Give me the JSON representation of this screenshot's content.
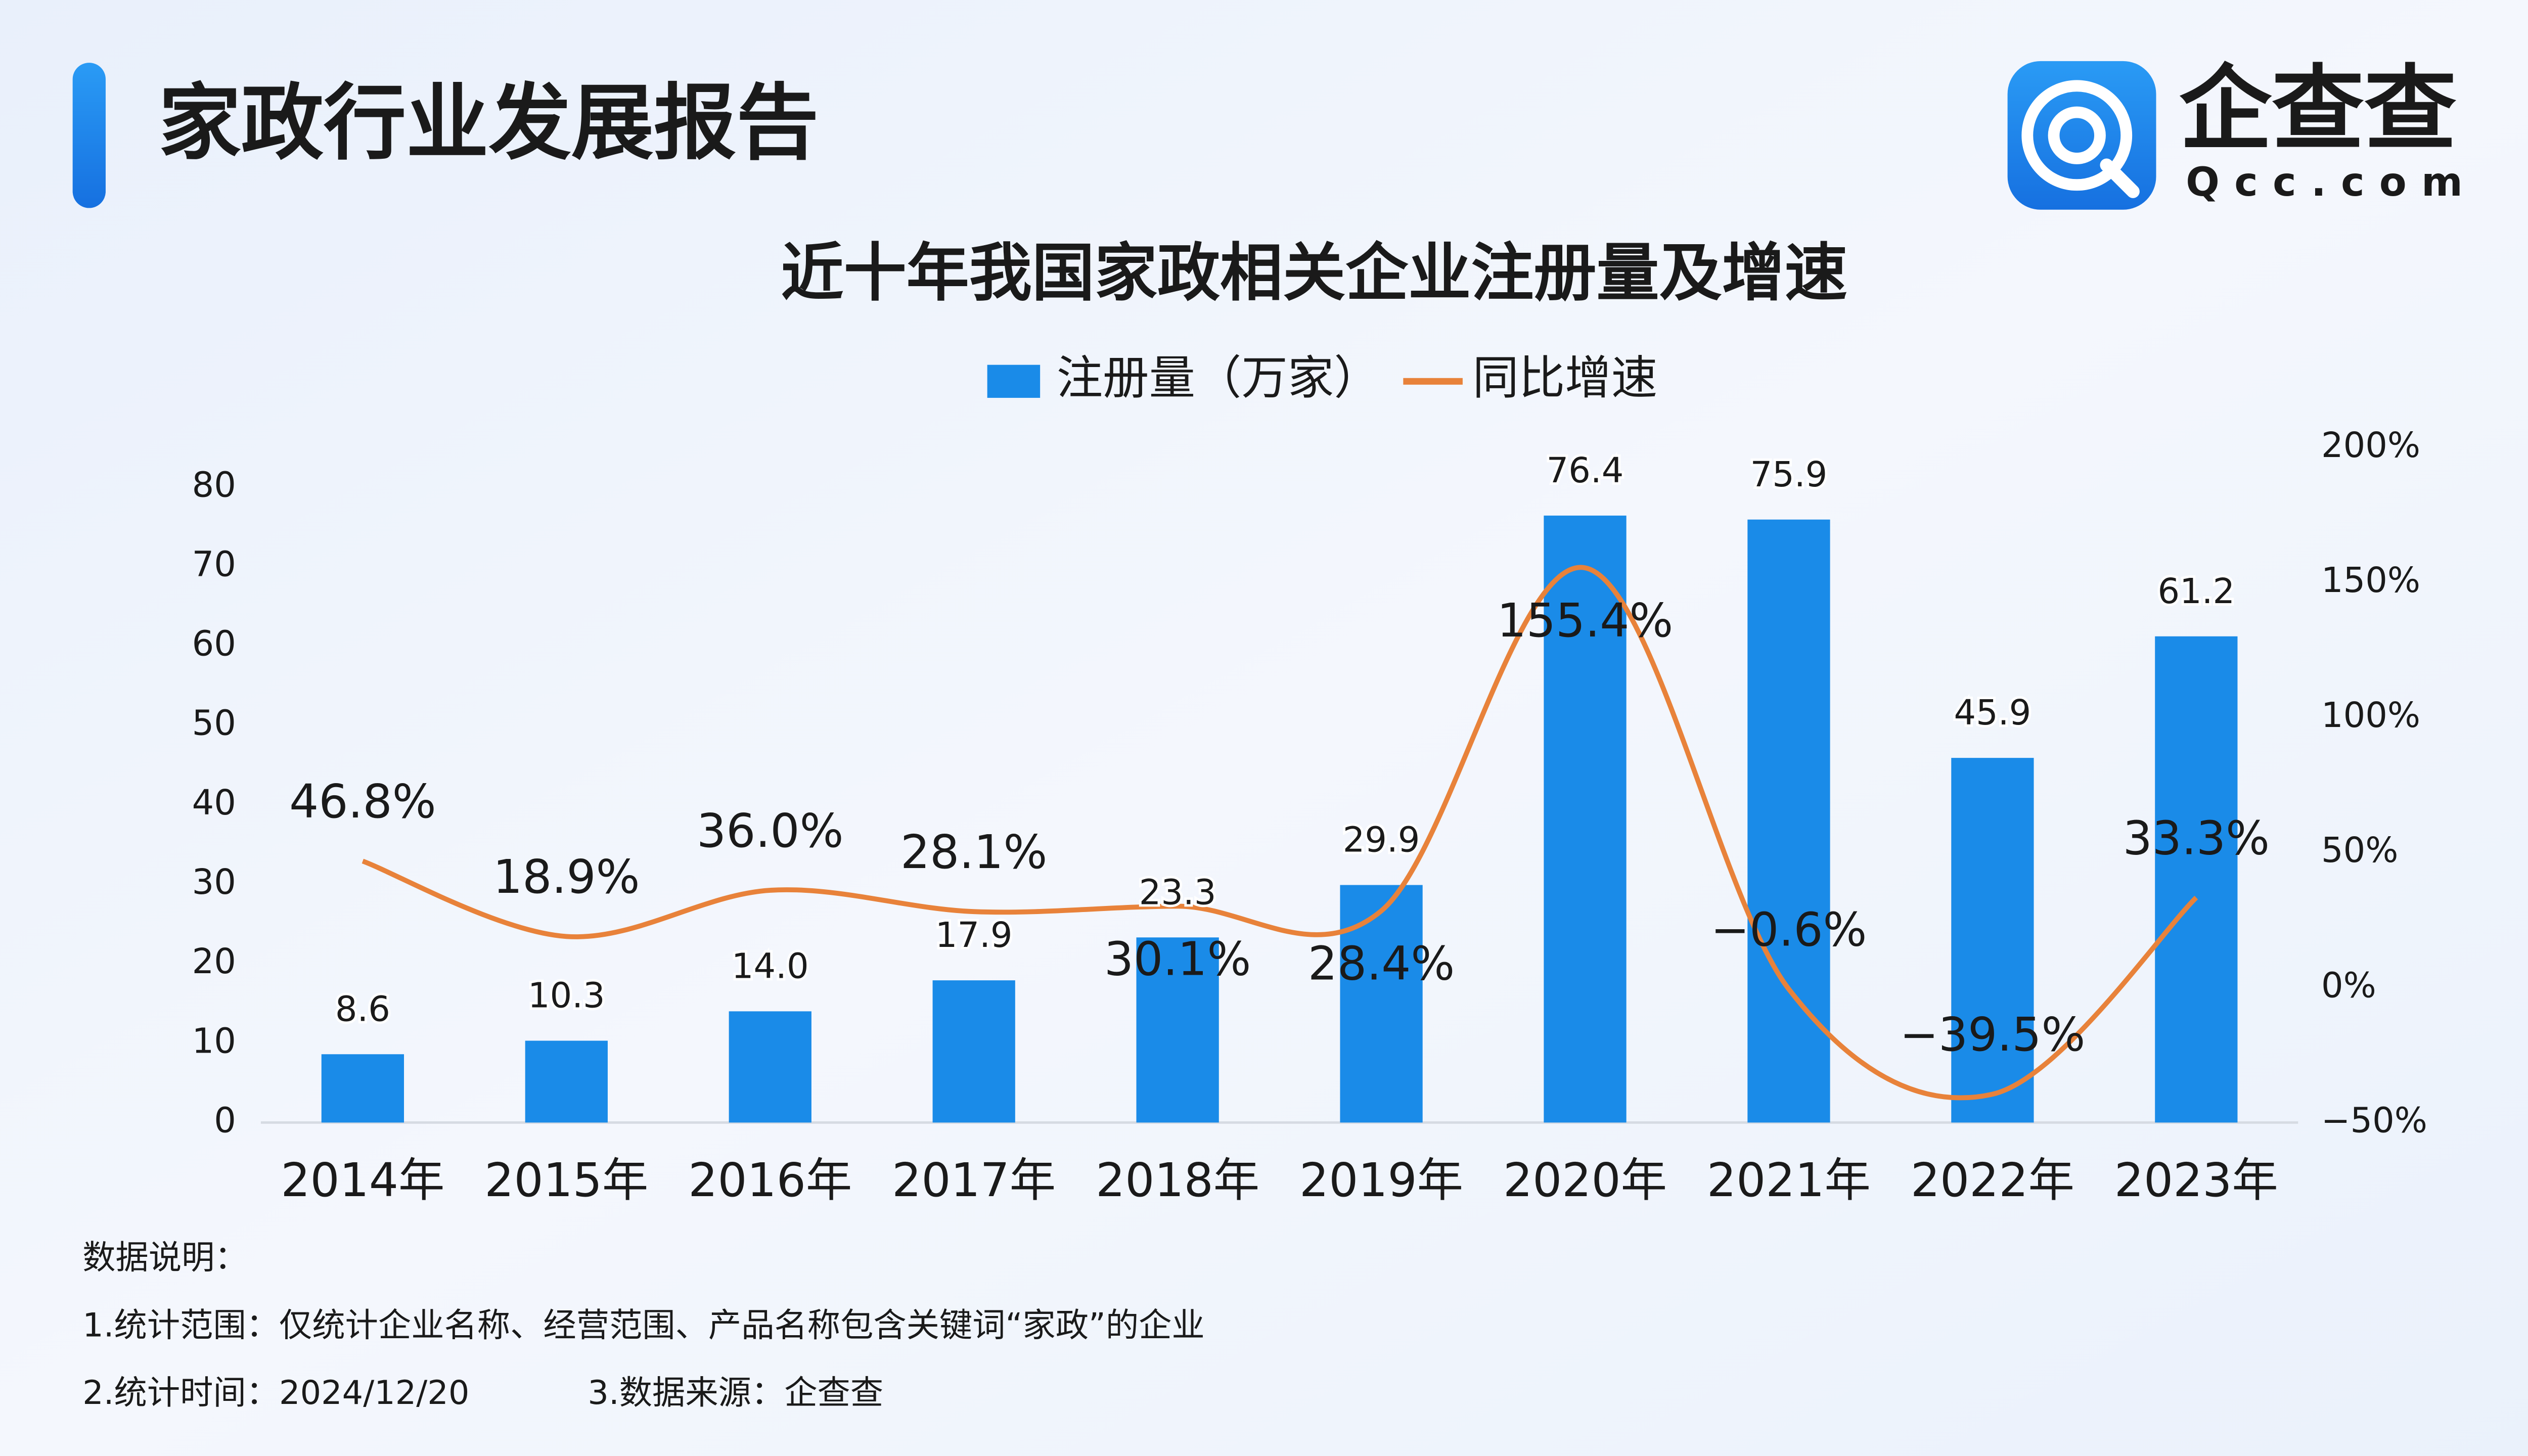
{
  "header": {
    "title": "家政行业发展报告"
  },
  "logo": {
    "name": "企查查",
    "domain": "Qcc.com"
  },
  "chart_data": {
    "type": "bar-line",
    "title": "近十年我国家政相关企业注册量及增速",
    "categories": [
      "2014年",
      "2015年",
      "2016年",
      "2017年",
      "2018年",
      "2019年",
      "2020年",
      "2021年",
      "2022年",
      "2023年"
    ],
    "series": [
      {
        "name": "注册量（万家）",
        "type": "bar",
        "color": "#1a8be8",
        "axis": "y",
        "values": [
          8.6,
          10.3,
          14.0,
          17.9,
          23.3,
          29.9,
          76.4,
          75.9,
          45.9,
          61.2
        ],
        "value_labels": [
          "8.6",
          "10.3",
          "14.0",
          "17.9",
          "23.3",
          "29.9",
          "76.4",
          "75.9",
          "45.9",
          "61.2"
        ]
      },
      {
        "name": "同比增速",
        "type": "line",
        "color": "#e8823a",
        "axis": "y2",
        "values": [
          46.8,
          18.9,
          36.0,
          28.1,
          30.1,
          28.4,
          155.4,
          -0.6,
          -39.5,
          33.3
        ],
        "value_labels": [
          "46.8%",
          "18.9%",
          "36.0%",
          "28.1%",
          "30.1%",
          "28.4%",
          "155.4%",
          "−0.6%",
          "−39.5%",
          "33.3%"
        ]
      }
    ],
    "ylim": [
      0,
      80
    ],
    "yticks": [
      0,
      10,
      20,
      30,
      40,
      50,
      60,
      70,
      80
    ],
    "y2lim": [
      -50,
      200
    ],
    "y2ticks": [
      {
        "value": -50,
        "label": "−50%"
      },
      {
        "value": 0,
        "label": "0%"
      },
      {
        "value": 50,
        "label": "50%"
      },
      {
        "value": 100,
        "label": "100%"
      },
      {
        "value": 150,
        "label": "150%"
      },
      {
        "value": 200,
        "label": "200%"
      }
    ],
    "legend": "top",
    "grid": false
  },
  "notes": {
    "heading": "数据说明：",
    "items": [
      "1.统计范围：仅统计企业名称、经营范围、产品名称包含关键词“家政”的企业",
      "2.统计时间：2024/12/20",
      "3.数据来源：企查查"
    ]
  }
}
